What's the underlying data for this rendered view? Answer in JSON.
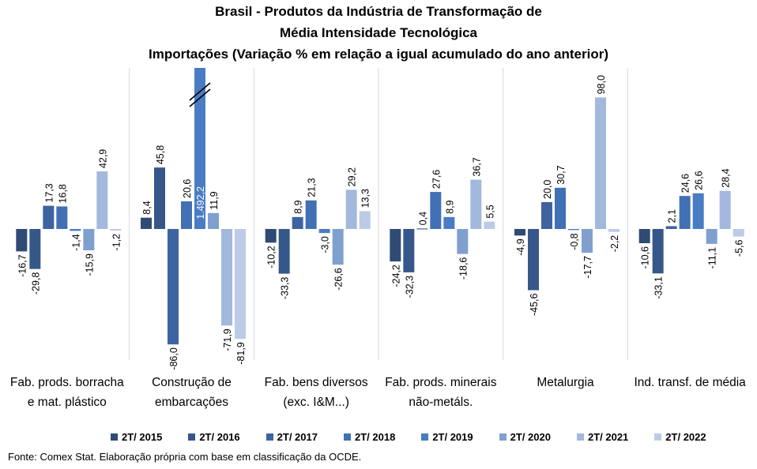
{
  "title": {
    "line1": "Brasil - Produtos da Indústria de Transformação  de",
    "line2": "Média Intensidade Tecnológica",
    "line3": "Importações (Variação % em relação a igual acumulado do ano anterior)"
  },
  "chart_data": {
    "type": "bar",
    "categories": [
      "Fab. prods. borracha\ne mat. plástico",
      "Construção de\nembarcações",
      "Fab. bens diversos\n(exc. I&M...)",
      "Fab. prods. minerais\nnão-metáls.",
      "Metalurgia",
      "Ind. transf. de média"
    ],
    "series": [
      {
        "name": "2T/ 2015",
        "color": "#2f4b73",
        "values": [
          -16.7,
          8.4,
          -10.2,
          -24.2,
          -4.9,
          -10.6
        ],
        "labels": [
          "-16,7",
          "8,4",
          "-10,2",
          "-24,2",
          "-4,9",
          "-10,6"
        ]
      },
      {
        "name": "2T/ 2016",
        "color": "#36578a",
        "values": [
          -29.8,
          45.8,
          -33.3,
          -32.3,
          -45.6,
          -33.1
        ],
        "labels": [
          "-29,8",
          "45,8",
          "-33,3",
          "-32,3",
          "-45,6",
          "-33,1"
        ]
      },
      {
        "name": "2T/ 2017",
        "color": "#3d64a0",
        "values": [
          17.3,
          -86.0,
          8.9,
          0.4,
          20.0,
          2.1
        ],
        "labels": [
          "17,3",
          "-86,0",
          "8,9",
          "0,4",
          "20,0",
          "2,1"
        ]
      },
      {
        "name": "2T/ 2018",
        "color": "#4170b4",
        "values": [
          16.8,
          20.6,
          21.3,
          27.6,
          30.7,
          24.6
        ],
        "labels": [
          "16,8",
          "20,6",
          "21,3",
          "27,6",
          "30,7",
          "24,6"
        ]
      },
      {
        "name": "2T/ 2019",
        "color": "#4a7cc4",
        "values": [
          -1.4,
          1492.2,
          -3.0,
          8.9,
          -0.8,
          26.6
        ],
        "labels": [
          "-1,4",
          "1.492,2",
          "-3,0",
          "8,9",
          "-0,8",
          "26,6"
        ]
      },
      {
        "name": "2T/ 2020",
        "color": "#7f9fcf",
        "values": [
          -15.9,
          11.9,
          -26.6,
          -18.6,
          -17.7,
          -11.1
        ],
        "labels": [
          "-15,9",
          "11,9",
          "-26,6",
          "-18,6",
          "-17,7",
          "-11,1"
        ]
      },
      {
        "name": "2T/ 2021",
        "color": "#a3b8dd",
        "values": [
          42.9,
          -71.9,
          29.2,
          36.7,
          98.0,
          28.4
        ],
        "labels": [
          "42,9",
          "-71,9",
          "29,2",
          "36,7",
          "98,0",
          "28,4"
        ]
      },
      {
        "name": "2T/ 2022",
        "color": "#bccbe6",
        "values": [
          -1.2,
          -81.9,
          13.3,
          5.5,
          -2.2,
          -5.6
        ],
        "labels": [
          "-1,2",
          "-81,9",
          "13,3",
          "5,5",
          "-2,2",
          "-5,6"
        ]
      }
    ],
    "axis_break_value": 1492.2,
    "grid": false,
    "legend_position": "bottom"
  },
  "footer": "Fonte: Comex Stat. Elaboração própria com base em classificação da OCDE."
}
